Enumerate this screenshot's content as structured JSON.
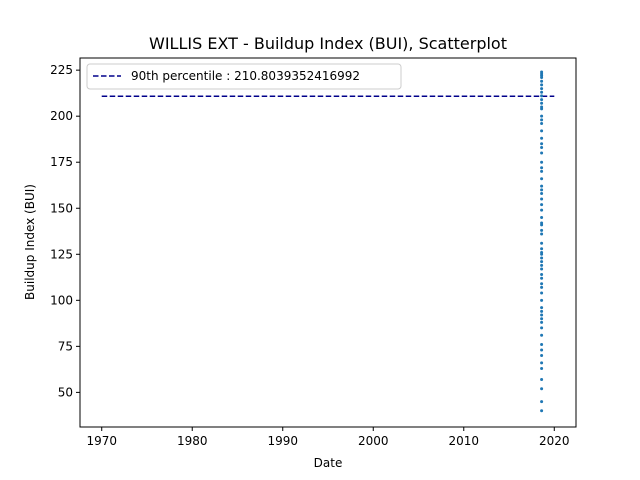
{
  "chart_data": {
    "type": "scatter",
    "title": "WILLIS EXT - Buildup Index (BUI), Scatterplot",
    "xlabel": "Date",
    "ylabel": "Buildup Index (BUI)",
    "xlim": [
      1967.6,
      2022.4
    ],
    "ylim": [
      31.2,
      231.6
    ],
    "xticks": [
      1970,
      1980,
      1990,
      2000,
      2010,
      2020
    ],
    "yticks": [
      50,
      75,
      100,
      125,
      150,
      175,
      200,
      225
    ],
    "grid": false,
    "legend_position": "top-left",
    "reference_line": {
      "label": "90th percentile : 210.8039352416992",
      "value": 210.8039352416992,
      "x_range": [
        1970,
        2020
      ],
      "color": "#00008b",
      "style": "dashed"
    },
    "series": [
      {
        "color": "#1f77b4",
        "x": [
          2018.6,
          2018.6,
          2018.6,
          2018.6,
          2018.6,
          2018.6,
          2018.6,
          2018.6,
          2018.6,
          2018.6,
          2018.6,
          2018.6,
          2018.6,
          2018.6,
          2018.6,
          2018.6,
          2018.6,
          2018.6,
          2018.6,
          2018.6,
          2018.6,
          2018.6,
          2018.6,
          2018.6,
          2018.6,
          2018.6,
          2018.6,
          2018.6,
          2018.6,
          2018.6,
          2018.6,
          2018.6,
          2018.6,
          2018.6,
          2018.6,
          2018.6,
          2018.6,
          2018.6,
          2018.6,
          2018.6,
          2018.6,
          2018.6,
          2018.6,
          2018.6,
          2018.6,
          2018.6,
          2018.6,
          2018.6,
          2018.6,
          2018.6,
          2018.6,
          2018.6,
          2018.6,
          2018.6,
          2018.6,
          2018.6,
          2018.6,
          2018.6,
          2018.6,
          2018.6,
          2018.6,
          2018.6,
          2018.6,
          2018.6,
          2018.6,
          2018.6
        ],
        "y": [
          40,
          45,
          52,
          57,
          63,
          70,
          76,
          81,
          85,
          88,
          92,
          96,
          100,
          104,
          109,
          114,
          117,
          119,
          121,
          123,
          125,
          126,
          131,
          136,
          141,
          145,
          149,
          152,
          155,
          158,
          160,
          162,
          166,
          170,
          175,
          180,
          183,
          185,
          188,
          192,
          196,
          200,
          204,
          207,
          209,
          211,
          213,
          215,
          217,
          219,
          221,
          222,
          223,
          224,
          205,
          198,
          172,
          142,
          138,
          128,
          112,
          107,
          94,
          90,
          73,
          66
        ]
      }
    ]
  }
}
